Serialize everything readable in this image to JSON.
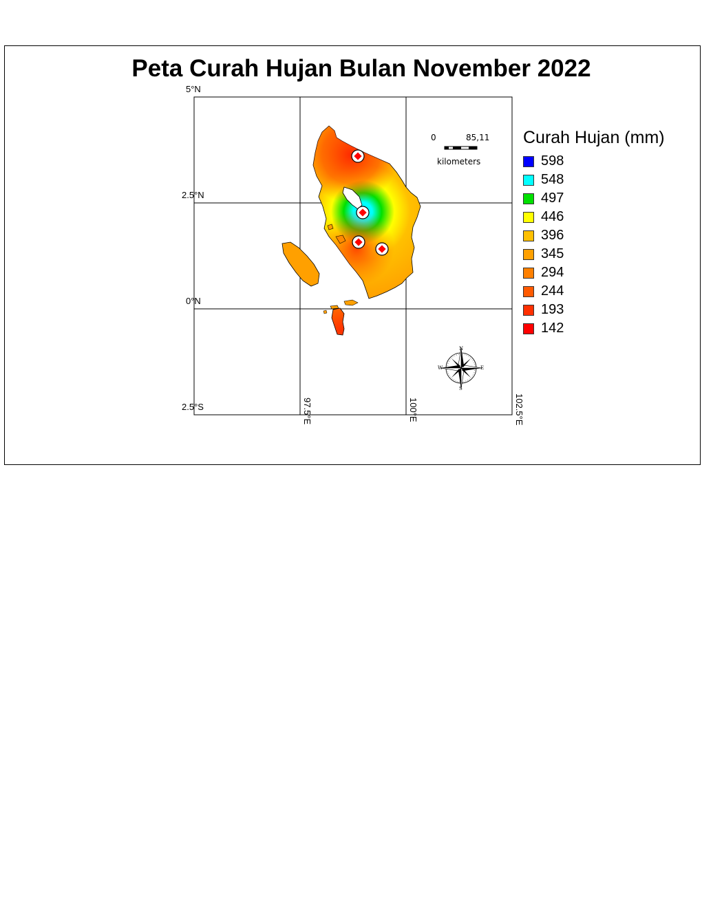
{
  "map": {
    "title": "Peta Curah Hujan Bulan November 2022",
    "lat_labels": [
      "5°N",
      "2.5°N",
      "0°N",
      "2.5°S"
    ],
    "lon_labels": [
      "97.5°E",
      "100°E",
      "102.5°E"
    ],
    "scale_bar": {
      "start": "0",
      "end": "85,11",
      "unit": "kilometers"
    },
    "compass": {
      "n": "N",
      "s": "S",
      "e": "E",
      "w": "W"
    },
    "legend": {
      "title": "Curah Hujan (mm)",
      "items": [
        {
          "label": "598",
          "color": "#0000ff"
        },
        {
          "label": "548",
          "color": "#00ffff"
        },
        {
          "label": "497",
          "color": "#00e000"
        },
        {
          "label": "446",
          "color": "#ffff00"
        },
        {
          "label": "396",
          "color": "#ffc000"
        },
        {
          "label": "345",
          "color": "#ffa000"
        },
        {
          "label": "294",
          "color": "#ff8000"
        },
        {
          "label": "244",
          "color": "#ff5a00"
        },
        {
          "label": "193",
          "color": "#ff3000"
        },
        {
          "label": "142",
          "color": "#ff0000"
        }
      ]
    }
  }
}
